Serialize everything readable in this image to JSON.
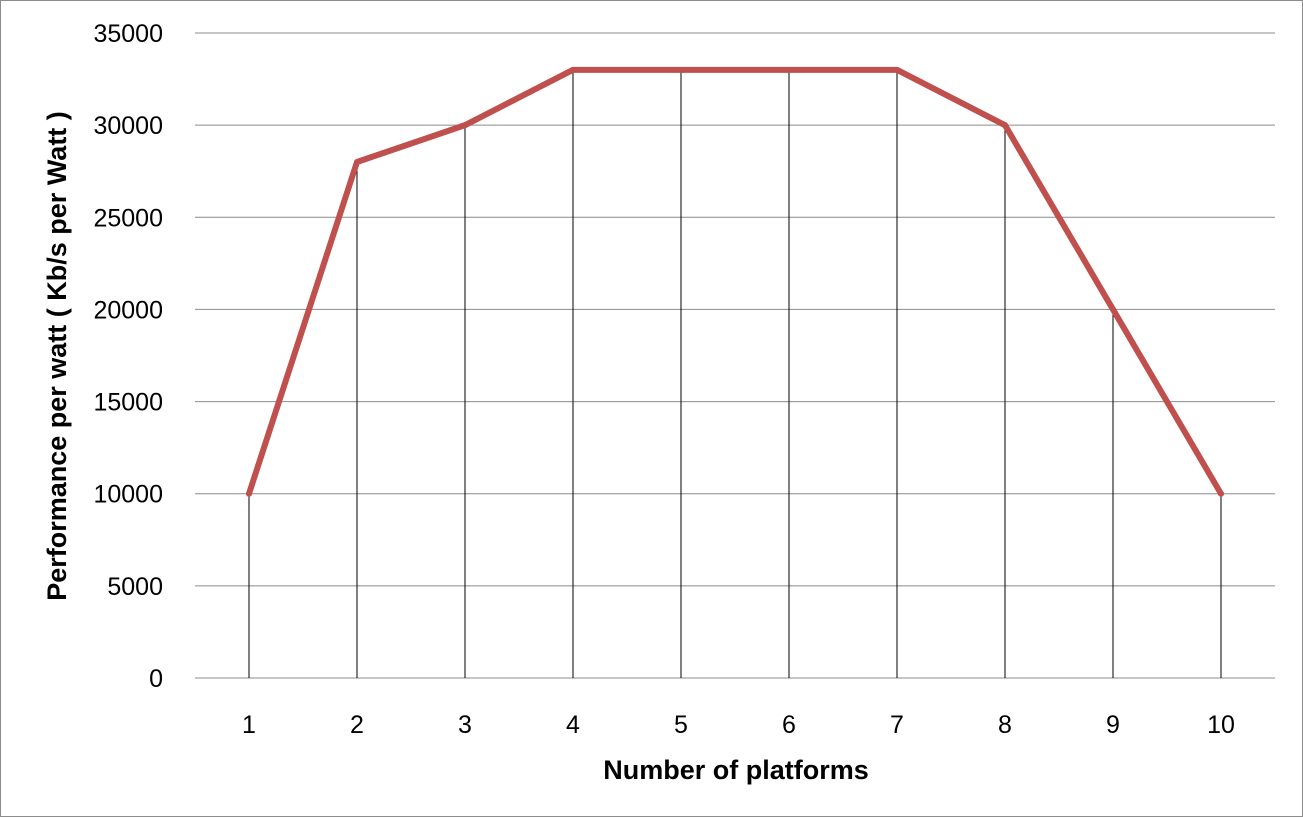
{
  "chart_data": {
    "type": "line",
    "x": [
      1,
      2,
      3,
      4,
      5,
      6,
      7,
      8,
      9,
      10
    ],
    "categories": [
      "1",
      "2",
      "3",
      "4",
      "5",
      "6",
      "7",
      "8",
      "9",
      "10"
    ],
    "series": [
      {
        "values": [
          10000,
          28000,
          30000,
          33000,
          33000,
          33000,
          33000,
          30000,
          20000,
          10000
        ],
        "color": "#c0504d"
      }
    ],
    "xlabel": "Number of platforms",
    "ylabel": "Performance per watt ( Kb/s per Watt )",
    "ylim": [
      0,
      35000
    ],
    "yticks": [
      0,
      5000,
      10000,
      15000,
      20000,
      25000,
      30000,
      35000
    ],
    "grid": true,
    "drop_lines": true,
    "legend": "none"
  }
}
